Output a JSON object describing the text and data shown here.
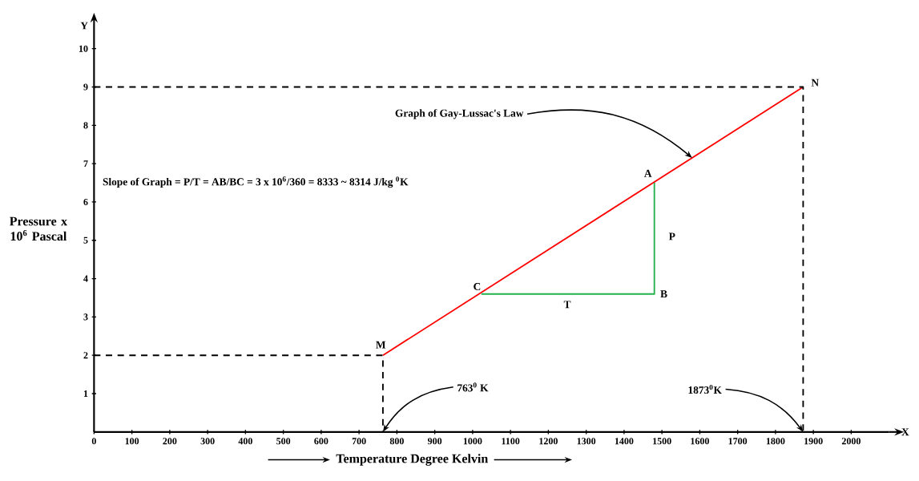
{
  "chart_data": {
    "type": "line",
    "xlabel": "Temperature Degree Kelvin",
    "ylabel": "Pressure x 10$^{6}$ Pascal",
    "xlim": [
      0,
      2100
    ],
    "ylim": [
      0,
      10.6
    ],
    "xticks": [
      0,
      100,
      200,
      300,
      400,
      500,
      600,
      700,
      800,
      900,
      1000,
      1100,
      1200,
      1300,
      1400,
      1500,
      1600,
      1700,
      1800,
      1900,
      2000
    ],
    "yticks": [
      1,
      2,
      3,
      4,
      5,
      6,
      7,
      8,
      9,
      10
    ],
    "series": [
      {
        "color": "#ff0000",
        "x": [
          763,
          1873
        ],
        "values": [
          2,
          9
        ]
      },
      {
        "color": "#22b14c",
        "x": [
          1023,
          1480,
          1480
        ],
        "values": [
          3.6,
          3.6,
          6.5
        ]
      },
      {
        "color": "#000000",
        "line_style": "dashed",
        "x": [
          0,
          763,
          763
        ],
        "values": [
          2,
          2,
          0
        ]
      },
      {
        "color": "#000000",
        "line_style": "dashed",
        "x": [
          0,
          1873,
          1873
        ],
        "values": [
          9,
          9,
          0
        ]
      }
    ],
    "annotations": [
      {
        "text": "M",
        "x": 763,
        "y": 2
      },
      {
        "text": "N",
        "x": 1873,
        "y": 9
      },
      {
        "text": "A",
        "x": 1480,
        "y": 6.5
      },
      {
        "text": "B",
        "x": 1480,
        "y": 3.6
      },
      {
        "text": "C",
        "x": 1023,
        "y": 3.6
      },
      {
        "text": "P",
        "x": 1480,
        "y": 5.1
      },
      {
        "text": "T",
        "x": 1250,
        "y": 3.6
      },
      {
        "text": "Graph of Gay-Lussac's Law",
        "x": 1580,
        "y": 7.15
      },
      {
        "text": "763$^{0}$ K",
        "x": 763,
        "y": 0
      },
      {
        "text": "1873$^{0}$K",
        "x": 1873,
        "y": 0
      },
      "Slope of Graph = P/T = AB/BC = 3 x 10$^{6}$/360 = 8333 ~ 8314 J/kg $^{0}$K",
      "X",
      "Y"
    ]
  }
}
